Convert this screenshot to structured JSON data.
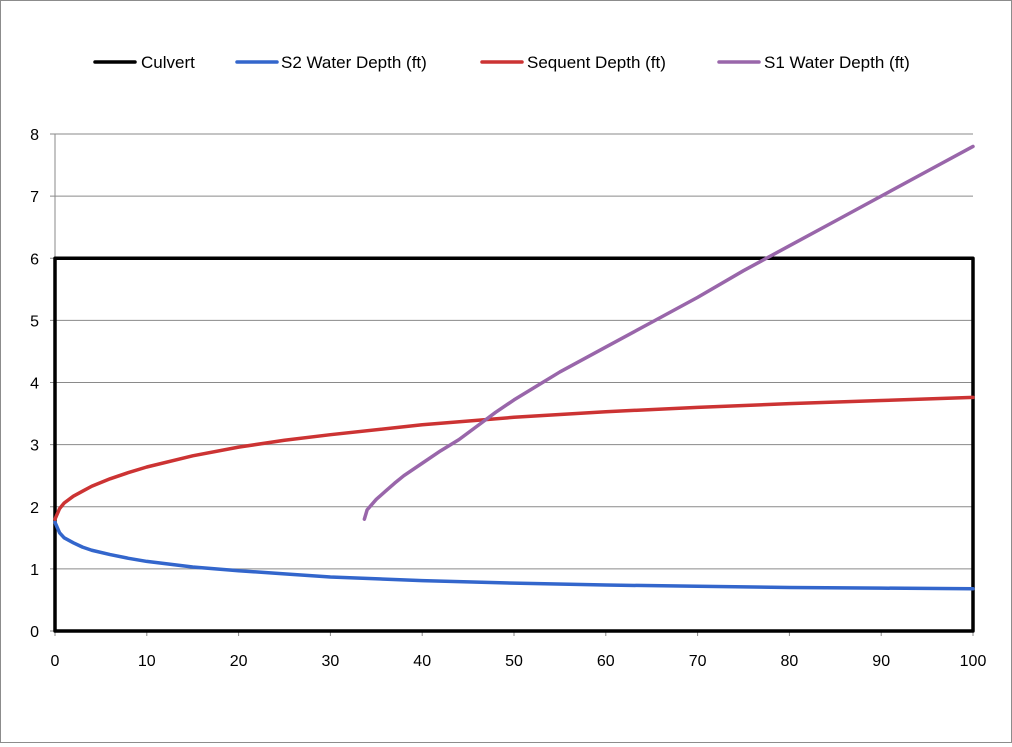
{
  "chart_data": {
    "type": "line",
    "title": "",
    "xlabel": "",
    "ylabel": "",
    "xlim": [
      0,
      100
    ],
    "ylim": [
      0,
      8
    ],
    "x_ticks": [
      "0",
      "10",
      "20",
      "30",
      "40",
      "50",
      "60",
      "70",
      "80",
      "90",
      "100"
    ],
    "y_ticks": [
      "0",
      "1",
      "2",
      "3",
      "4",
      "5",
      "6",
      "7",
      "8"
    ],
    "grid": "horizontal",
    "legend_position": "top",
    "series": [
      {
        "name": "Culvert",
        "color": "#000000",
        "x": [
          0,
          100,
          100,
          0,
          0
        ],
        "y": [
          0,
          0,
          6,
          6,
          0
        ]
      },
      {
        "name": "S2 Water Depth (ft)",
        "color": "#3366cc",
        "x": [
          0,
          0.5,
          1,
          2,
          3,
          4,
          6,
          8,
          10,
          15,
          20,
          25,
          30,
          40,
          50,
          60,
          70,
          80,
          90,
          100
        ],
        "y": [
          1.75,
          1.58,
          1.5,
          1.42,
          1.35,
          1.3,
          1.23,
          1.17,
          1.12,
          1.03,
          0.97,
          0.92,
          0.87,
          0.81,
          0.77,
          0.74,
          0.72,
          0.7,
          0.69,
          0.68
        ]
      },
      {
        "name": "Sequent Depth (ft)",
        "color": "#cc3333",
        "x": [
          0,
          0.5,
          1,
          2,
          3,
          4,
          6,
          8,
          10,
          15,
          20,
          25,
          30,
          40,
          50,
          60,
          70,
          80,
          90,
          100
        ],
        "y": [
          1.8,
          1.97,
          2.06,
          2.17,
          2.25,
          2.33,
          2.45,
          2.55,
          2.64,
          2.82,
          2.96,
          3.07,
          3.16,
          3.32,
          3.44,
          3.53,
          3.6,
          3.66,
          3.71,
          3.76
        ]
      },
      {
        "name": "S1 Water Depth (ft)",
        "color": "#9966aa",
        "x": [
          33.7,
          34,
          35,
          36,
          37,
          38,
          40,
          42,
          44,
          46,
          48,
          50,
          55,
          60,
          65,
          70,
          75,
          80,
          85,
          90,
          95,
          100
        ],
        "y": [
          1.8,
          1.95,
          2.12,
          2.25,
          2.38,
          2.5,
          2.7,
          2.9,
          3.08,
          3.3,
          3.52,
          3.72,
          4.17,
          4.57,
          4.97,
          5.37,
          5.8,
          6.2,
          6.6,
          7.0,
          7.4,
          7.8
        ]
      }
    ]
  }
}
